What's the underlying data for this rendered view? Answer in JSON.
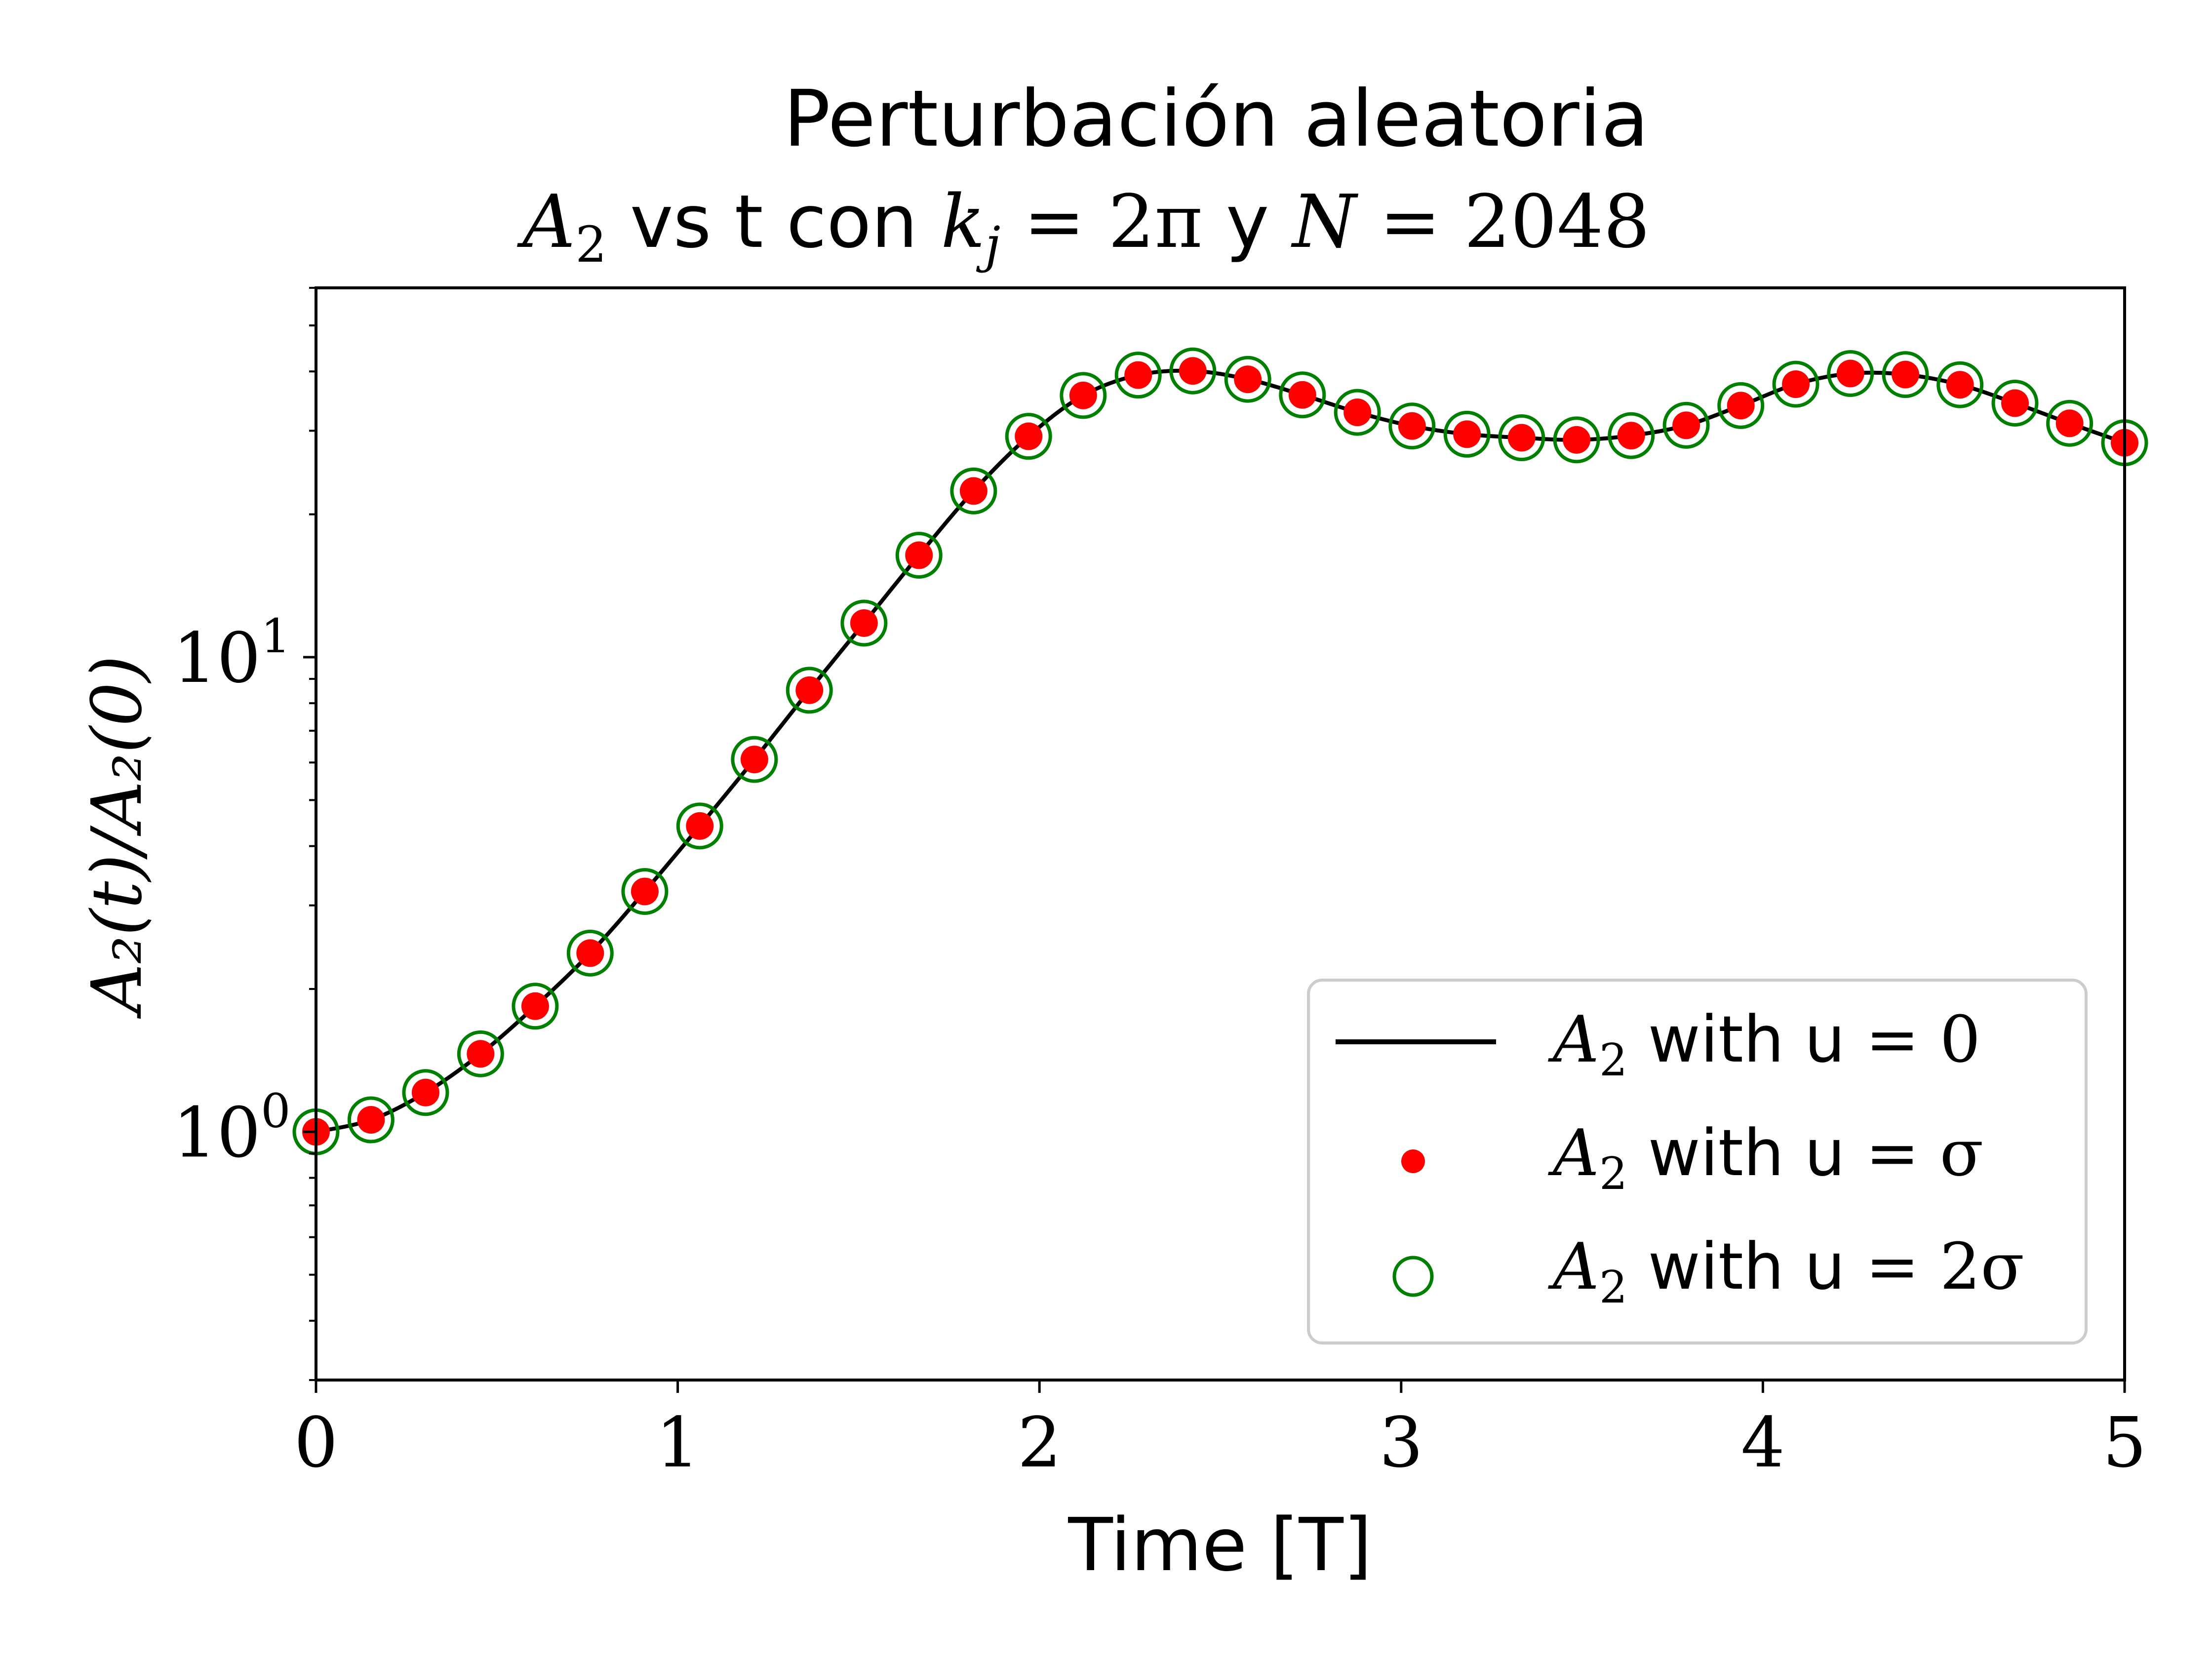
{
  "chart_data": {
    "type": "line",
    "title_line1": "Perturbación aleatoria",
    "title_line2": {
      "a2": "A",
      "a2_sub": "2",
      "mid1": " vs t con ",
      "k": "k",
      "k_sub": "j",
      "eq1": " = 2π",
      "mid2": " y ",
      "n": "N",
      "eq2": " = 2048"
    },
    "xlabel": "Time [T]",
    "ylabel": "A₂(t)/A₂(0)",
    "xlim": [
      0,
      5
    ],
    "ylim": [
      0.3,
      60
    ],
    "yscale": "log",
    "grid": false,
    "legend_position": "lower-right",
    "x_ticks": [
      {
        "value": 0,
        "label": "0"
      },
      {
        "value": 1,
        "label": "1"
      },
      {
        "value": 2,
        "label": "2"
      },
      {
        "value": 3,
        "label": "3"
      },
      {
        "value": 4,
        "label": "4"
      },
      {
        "value": 5,
        "label": "5"
      }
    ],
    "y_ticks": [
      {
        "value": 1,
        "base": "10",
        "exp": "0"
      },
      {
        "value": 10,
        "base": "10",
        "exp": "1"
      }
    ],
    "x": [
      0.0,
      0.152,
      0.303,
      0.455,
      0.606,
      0.758,
      0.909,
      1.061,
      1.212,
      1.364,
      1.515,
      1.667,
      1.818,
      1.97,
      2.121,
      2.273,
      2.424,
      2.576,
      2.727,
      2.879,
      3.03,
      3.182,
      3.333,
      3.485,
      3.636,
      3.788,
      3.939,
      4.091,
      4.242,
      4.394,
      4.545,
      4.697,
      4.848,
      5.0
    ],
    "series": [
      {
        "name": "A2 with u = 0",
        "legend": {
          "a": "A",
          "sub": "2",
          "text": " with u ",
          "eq": "= 0"
        },
        "style": "line",
        "color": "#000000",
        "values": [
          1.0,
          1.06,
          1.21,
          1.46,
          1.84,
          2.38,
          3.21,
          4.41,
          6.09,
          8.52,
          11.8,
          16.4,
          22.4,
          29.2,
          35.6,
          39.3,
          40.1,
          38.5,
          35.7,
          32.8,
          30.7,
          29.5,
          29.0,
          28.7,
          29.3,
          30.8,
          33.9,
          37.6,
          39.6,
          39.4,
          37.5,
          34.3,
          31.1,
          28.3
        ]
      },
      {
        "name": "A2 with u = σ",
        "legend": {
          "a": "A",
          "sub": "2",
          "text": " with u ",
          "eq": "= σ"
        },
        "style": "scatter-filled",
        "color": "#ff0000",
        "values": [
          1.0,
          1.06,
          1.21,
          1.46,
          1.84,
          2.38,
          3.21,
          4.41,
          6.09,
          8.52,
          11.8,
          16.4,
          22.4,
          29.2,
          35.6,
          39.3,
          40.1,
          38.5,
          35.7,
          32.8,
          30.7,
          29.5,
          29.0,
          28.7,
          29.3,
          30.8,
          33.9,
          37.6,
          39.6,
          39.4,
          37.5,
          34.3,
          31.1,
          28.3
        ]
      },
      {
        "name": "A2 with u = 2σ",
        "legend": {
          "a": "A",
          "sub": "2",
          "text": " with u ",
          "eq": "= 2σ"
        },
        "style": "scatter-open",
        "color": "#008000",
        "values": [
          1.0,
          1.06,
          1.21,
          1.46,
          1.84,
          2.38,
          3.21,
          4.41,
          6.09,
          8.52,
          11.8,
          16.4,
          22.4,
          29.2,
          35.6,
          39.3,
          40.1,
          38.5,
          35.7,
          32.8,
          30.7,
          29.5,
          29.0,
          28.7,
          29.3,
          30.8,
          33.9,
          37.6,
          39.6,
          39.4,
          37.5,
          34.3,
          31.1,
          28.3
        ]
      }
    ]
  }
}
